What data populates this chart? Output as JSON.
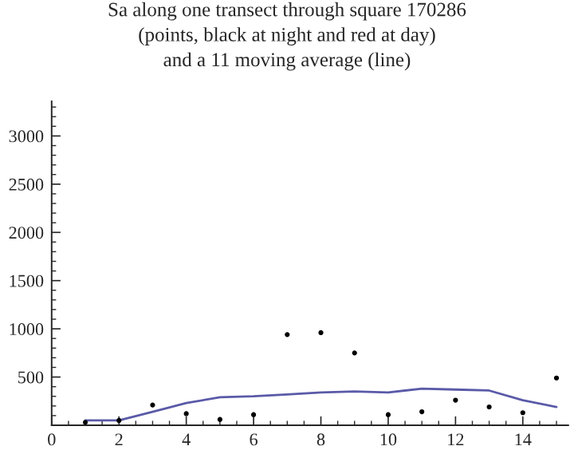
{
  "chart_data": {
    "type": "scatter",
    "title": "Sa along one transect through square 170286\n(points, black at night and red at day)\nand a 11 moving average (line)",
    "x": [
      1,
      2,
      3,
      4,
      5,
      6,
      7,
      8,
      9,
      10,
      11,
      12,
      13,
      14,
      15
    ],
    "series": [
      {
        "color": "#000000",
        "marker": "circle",
        "values": [
          30,
          50,
          210,
          120,
          60,
          110,
          940,
          960,
          750,
          110,
          140,
          260,
          190,
          130,
          490
        ]
      },
      {
        "type": "line",
        "color": "#5a5aa8",
        "values": [
          50,
          50,
          140,
          230,
          290,
          300,
          320,
          340,
          350,
          340,
          380,
          370,
          360,
          260,
          190
        ]
      }
    ],
    "xlim": [
      0,
      15.35
    ],
    "ylim": [
      0,
      3360
    ],
    "xticks": [
      0,
      2,
      4,
      6,
      8,
      10,
      12,
      14
    ],
    "yticks": [
      500,
      1000,
      1500,
      2000,
      2500,
      3000
    ],
    "grid": false,
    "legend": false
  }
}
